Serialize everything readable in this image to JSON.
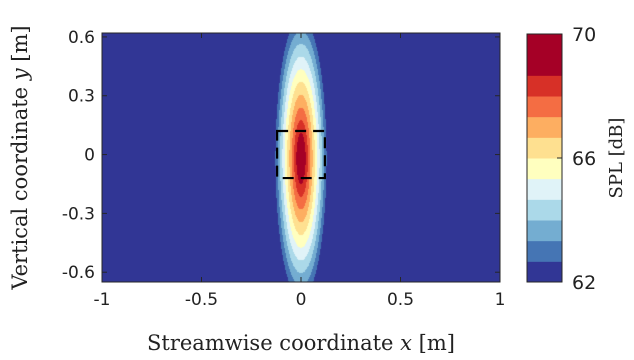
{
  "chart_data": {
    "type": "heatmap",
    "title": "",
    "xlabel": "Streamwise coordinate x [m]",
    "ylabel": "Vertical coordinate y [m]",
    "xlabel_parts": {
      "prefix": "Streamwise coordinate ",
      "var": "x",
      "unit": " [m]"
    },
    "ylabel_parts": {
      "prefix": "Vertical coordinate ",
      "var": "y",
      "unit": " [m]"
    },
    "xlim": [
      -1,
      1
    ],
    "ylim": [
      -0.65,
      0.62
    ],
    "xticks": [
      -1,
      -0.5,
      0,
      0.5,
      1
    ],
    "xtick_labels": [
      "-1",
      "-0.5",
      "0",
      "0.5",
      "1"
    ],
    "yticks": [
      -0.6,
      -0.3,
      0,
      0.3,
      0.6
    ],
    "ytick_labels": [
      "-0.6",
      "-0.3",
      "0",
      "0.3",
      "0.6"
    ],
    "grid": false,
    "colorbar": {
      "label": "SPL [dB]",
      "range": [
        62,
        70
      ],
      "levels": 12,
      "ticks": [
        62,
        66,
        70
      ],
      "tick_labels": [
        "62",
        "66",
        "70"
      ],
      "colors": [
        "#313695",
        "#4575b4",
        "#74add1",
        "#abd9e9",
        "#e0f3f8",
        "#ffffbf",
        "#fee090",
        "#fdae61",
        "#f46d43",
        "#d73027",
        "#a50026",
        "#a50026"
      ]
    },
    "field": {
      "peak_spl": 70,
      "peak_center": [
        0.0,
        -0.02
      ],
      "contour_62_halfwidth_x": 0.14,
      "contour_62_halfheight_y": 0.78
    },
    "annotation": {
      "type": "dashed-rectangle",
      "x_range": [
        -0.12,
        0.12
      ],
      "y_range": [
        -0.12,
        0.12
      ]
    }
  }
}
